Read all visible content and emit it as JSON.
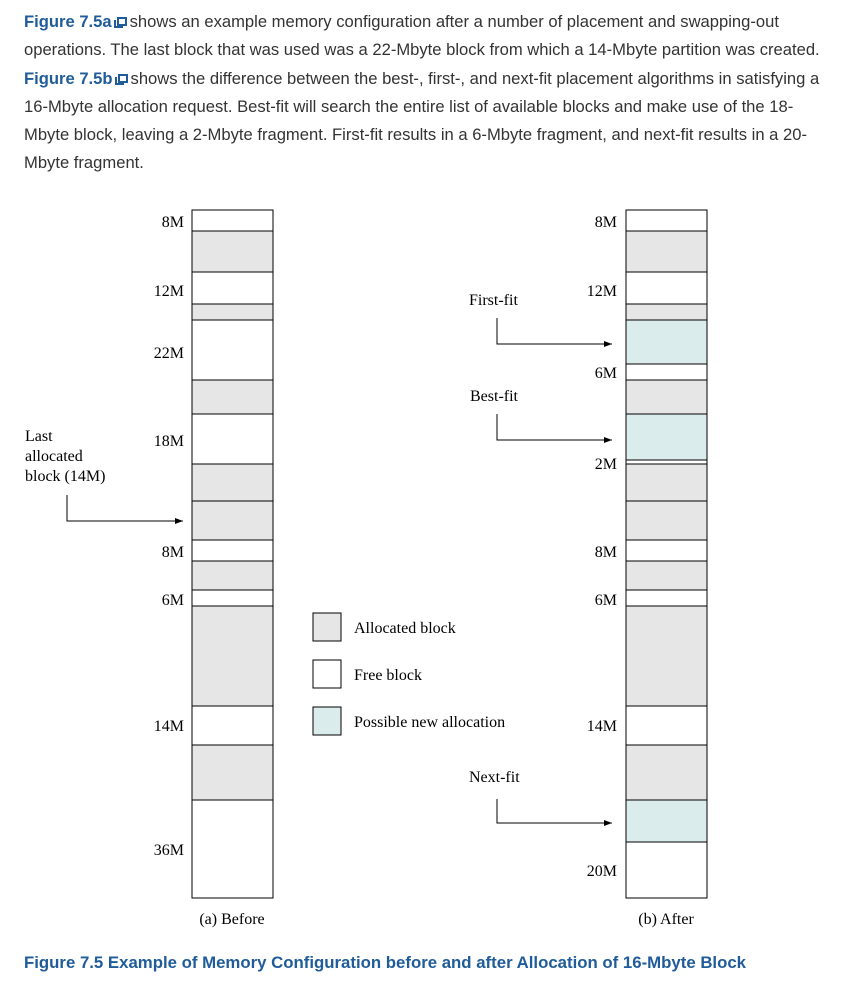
{
  "paragraph": {
    "ref_a": "Figure 7.5a",
    "text_1": "shows an example memory configuration after a number of placement and swapping-out operations. The last block that was used was a 22-Mbyte block from which a 14-Mbyte partition was created.",
    "ref_b": "Figure 7.5b",
    "text_2": "shows the difference between the best-, first-, and next-fit placement algorithms in satisfying a 16-Mbyte allocation request. Best-fit will search the entire list of available blocks and make use of the 18-Mbyte block, leaving a 2-Mbyte fragment. First-fit results in a 6-Mbyte fragment, and next-fit results in a 20-Mbyte fragment."
  },
  "colors": {
    "allocated": "#e6e6e6",
    "free": "#ffffff",
    "new_allocation": "#dbecec",
    "link": "#1f5c99"
  },
  "diagram": {
    "before": {
      "caption": "(a) Before",
      "labels": [
        "8M",
        "12M",
        "22M",
        "18M",
        "8M",
        "6M",
        "14M",
        "36M"
      ],
      "pointer": {
        "label_lines": [
          "Last",
          "allocated",
          "block (14M)"
        ]
      }
    },
    "after": {
      "caption": "(b) After",
      "labels": [
        "8M",
        "12M",
        "6M",
        "2M",
        "8M",
        "6M",
        "14M",
        "20M"
      ],
      "arrows": [
        "First-fit",
        "Best-fit",
        "Next-fit"
      ]
    },
    "legend": [
      {
        "label": "Allocated block",
        "kind": "allocated"
      },
      {
        "label": "Free block",
        "kind": "free"
      },
      {
        "label": "Possible new allocation",
        "kind": "new_allocation"
      }
    ]
  },
  "caption": "Figure 7.5 Example of Memory Configuration before and after Allocation of 16-Mbyte Block"
}
